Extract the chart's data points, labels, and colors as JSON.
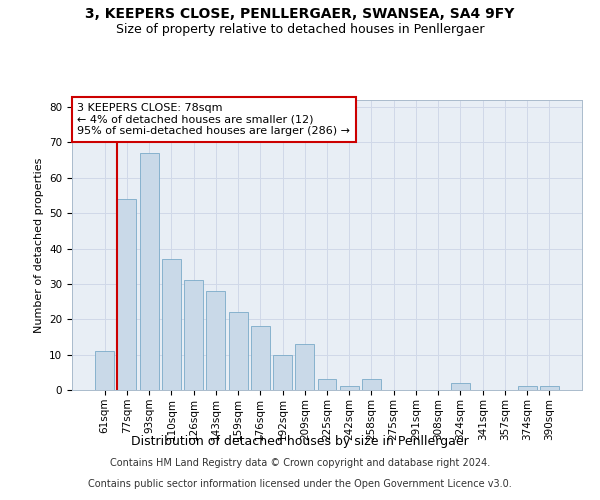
{
  "title": "3, KEEPERS CLOSE, PENLLERGAER, SWANSEA, SA4 9FY",
  "subtitle": "Size of property relative to detached houses in Penllergaer",
  "xlabel": "Distribution of detached houses by size in Penllergaer",
  "ylabel": "Number of detached properties",
  "categories": [
    "61sqm",
    "77sqm",
    "93sqm",
    "110sqm",
    "126sqm",
    "143sqm",
    "159sqm",
    "176sqm",
    "192sqm",
    "209sqm",
    "225sqm",
    "242sqm",
    "258sqm",
    "275sqm",
    "291sqm",
    "308sqm",
    "324sqm",
    "341sqm",
    "357sqm",
    "374sqm",
    "390sqm"
  ],
  "values": [
    11,
    54,
    67,
    37,
    31,
    28,
    22,
    18,
    10,
    13,
    3,
    1,
    3,
    0,
    0,
    0,
    2,
    0,
    0,
    1,
    1
  ],
  "bar_color": "#c9d9e8",
  "bar_edge_color": "#7aaac8",
  "highlight_bar_index": 1,
  "highlight_line_color": "#cc0000",
  "annotation_text": "3 KEEPERS CLOSE: 78sqm\n← 4% of detached houses are smaller (12)\n95% of semi-detached houses are larger (286) →",
  "annotation_box_color": "#ffffff",
  "annotation_box_edge_color": "#cc0000",
  "ylim": [
    0,
    82
  ],
  "yticks": [
    0,
    10,
    20,
    30,
    40,
    50,
    60,
    70,
    80
  ],
  "grid_color": "#d0d8e8",
  "background_color": "#e8eef5",
  "footer_line1": "Contains HM Land Registry data © Crown copyright and database right 2024.",
  "footer_line2": "Contains public sector information licensed under the Open Government Licence v3.0.",
  "title_fontsize": 10,
  "subtitle_fontsize": 9,
  "xlabel_fontsize": 9,
  "ylabel_fontsize": 8,
  "tick_fontsize": 7.5,
  "annotation_fontsize": 8,
  "footer_fontsize": 7
}
